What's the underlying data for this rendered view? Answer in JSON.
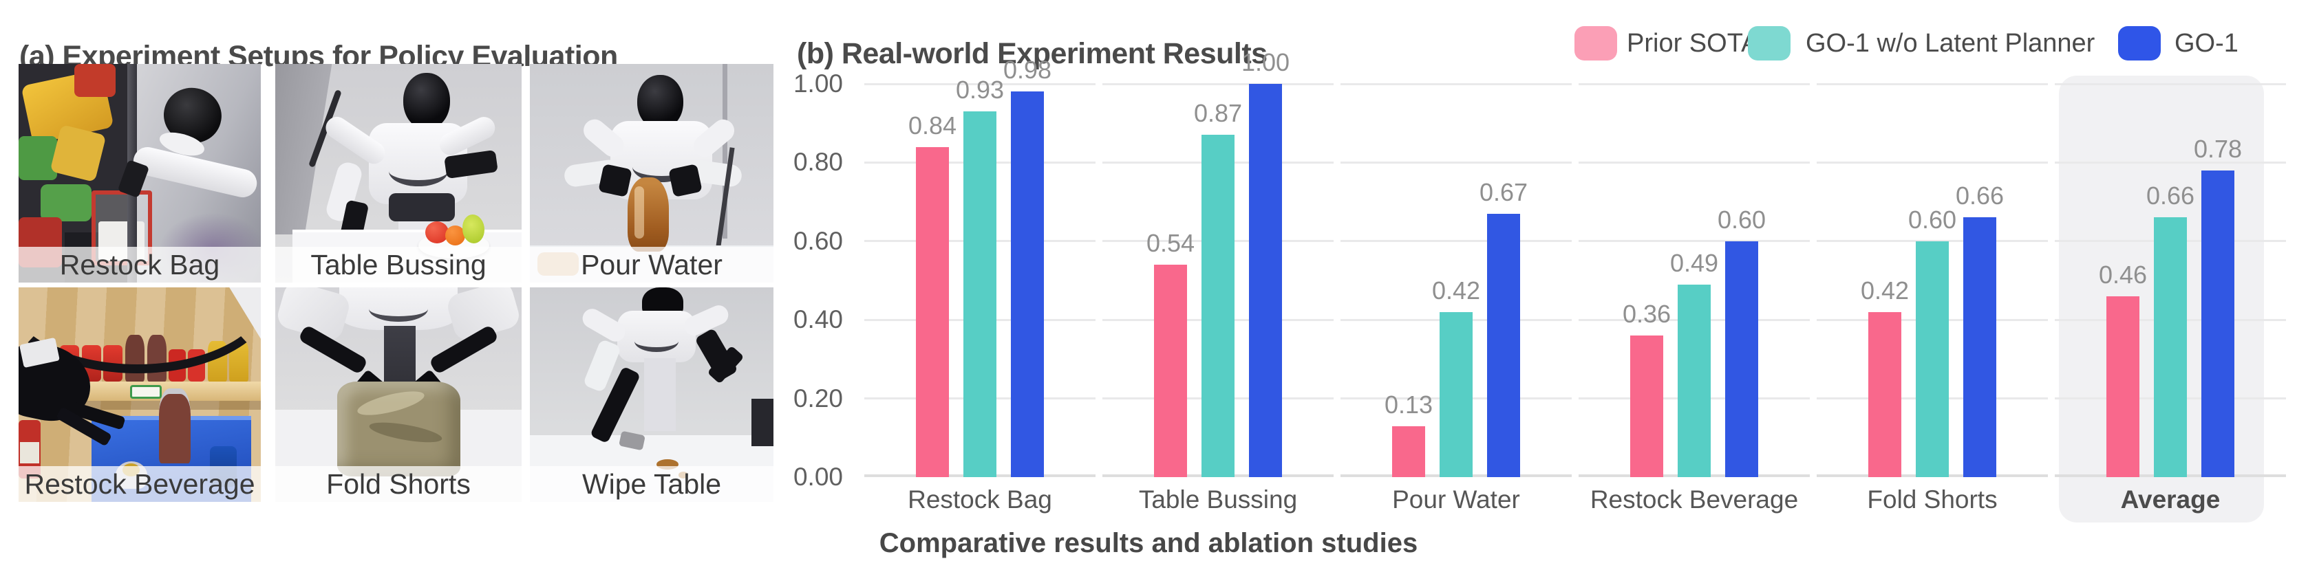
{
  "panel_a": {
    "title": "(a) Experiment Setups for Policy Evaluation",
    "photos": [
      {
        "label": "Restock Bag"
      },
      {
        "label": "Table Bussing"
      },
      {
        "label": "Pour Water"
      },
      {
        "label": "Restock Beverage"
      },
      {
        "label": "Fold Shorts"
      },
      {
        "label": "Wipe Table"
      }
    ]
  },
  "panel_b": {
    "title": "(b) Real-world Experiment Results",
    "caption": "Comparative results and ablation studies",
    "legend": [
      {
        "label": "Prior SOTA",
        "swatch_color": "#FB9FB6"
      },
      {
        "label": "GO-1 w/o Latent Planner",
        "swatch_color": "#7ED9D1"
      },
      {
        "label": "GO-1",
        "swatch_color": "#2F55E8"
      }
    ]
  },
  "chart_data": {
    "type": "bar",
    "title": "(b) Real-world Experiment Results",
    "categories": [
      "Restock Bag",
      "Table Bussing",
      "Pour Water",
      "Restock Beverage",
      "Fold Shorts",
      "Average"
    ],
    "series": [
      {
        "name": "Prior SOTA",
        "color": "#F9688C",
        "values": [
          0.84,
          0.54,
          0.13,
          0.36,
          0.42,
          0.46
        ]
      },
      {
        "name": "GO-1 w/o Latent Planner",
        "color": "#57CEC5",
        "values": [
          0.93,
          0.87,
          0.42,
          0.49,
          0.6,
          0.66
        ]
      },
      {
        "name": "GO-1",
        "color": "#3157E3",
        "values": [
          0.98,
          1.0,
          0.67,
          0.6,
          0.66,
          0.78
        ]
      }
    ],
    "ylim": [
      0,
      1
    ],
    "yticks": [
      0.0,
      0.2,
      0.4,
      0.6,
      0.8,
      1.0
    ],
    "xlabel": "",
    "ylabel": "",
    "grid": true,
    "legend_position": "top-right",
    "highlight_category": "Average",
    "value_label_decimals": 2
  }
}
